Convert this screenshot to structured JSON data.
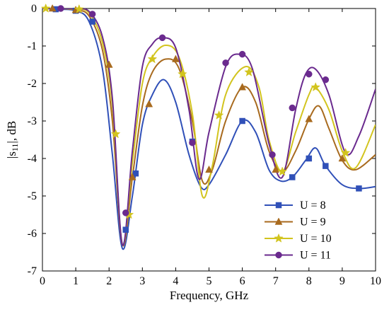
{
  "chart_data": {
    "type": "line",
    "title": "",
    "xlabel": "Frequency, GHz",
    "ylabel_main": "|s",
    "ylabel_sub": "11",
    "ylabel_tail": "|, dB",
    "xlim": [
      0,
      10
    ],
    "ylim": [
      -7,
      0
    ],
    "xticks": [
      0,
      1,
      2,
      3,
      4,
      5,
      6,
      7,
      8,
      9,
      10
    ],
    "yticks": [
      0,
      -1,
      -2,
      -3,
      -4,
      -5,
      -6,
      -7
    ],
    "grid": false,
    "legend_position": "bottom-right",
    "series": [
      {
        "name": "U = 8",
        "color": "#3050b8",
        "marker": "square",
        "x": [
          0,
          0.5,
          1.0,
          1.4,
          1.8,
          2.1,
          2.4,
          2.7,
          3.0,
          3.3,
          3.65,
          4.0,
          4.4,
          4.75,
          5.0,
          5.5,
          6.0,
          6.4,
          6.8,
          7.15,
          7.5,
          7.9,
          8.2,
          8.5,
          9.0,
          9.5,
          10.0
        ],
        "y": [
          0,
          -0.02,
          -0.06,
          -0.35,
          -1.6,
          -3.9,
          -6.4,
          -5.0,
          -3.1,
          -2.3,
          -1.9,
          -2.5,
          -3.9,
          -4.75,
          -4.7,
          -3.9,
          -3.0,
          -3.3,
          -4.3,
          -4.6,
          -4.5,
          -4.05,
          -3.72,
          -4.2,
          -4.7,
          -4.8,
          -4.75
        ],
        "marker_x": [
          0.4,
          1.0,
          1.5,
          2.5,
          2.8,
          4.5,
          6.0,
          7.5,
          8.0,
          8.5,
          9.5
        ],
        "marker_y": [
          -0.02,
          -0.06,
          -0.35,
          -5.9,
          -4.4,
          -3.55,
          -3.0,
          -4.5,
          -4.0,
          -4.2,
          -4.8
        ]
      },
      {
        "name": "U = 9",
        "color": "#a86a1e",
        "marker": "triangle",
        "x": [
          0,
          0.5,
          1.0,
          1.4,
          1.8,
          2.1,
          2.4,
          2.7,
          3.0,
          3.3,
          3.7,
          4.1,
          4.5,
          4.8,
          5.1,
          5.5,
          6.0,
          6.4,
          6.8,
          7.2,
          7.6,
          8.0,
          8.3,
          8.6,
          9.0,
          9.4,
          10.0
        ],
        "y": [
          0,
          0,
          -0.04,
          -0.2,
          -1.1,
          -3.0,
          -6.3,
          -4.5,
          -2.6,
          -1.7,
          -1.35,
          -1.6,
          -3.0,
          -4.6,
          -4.3,
          -3.0,
          -2.1,
          -2.5,
          -3.8,
          -4.35,
          -3.8,
          -2.95,
          -2.6,
          -3.2,
          -4.05,
          -4.3,
          -3.9
        ],
        "marker_x": [
          0.3,
          1.0,
          2.0,
          2.7,
          3.2,
          4.0,
          5.0,
          6.0,
          7.0,
          8.0,
          9.0
        ],
        "marker_y": [
          0,
          -0.04,
          -1.5,
          -4.5,
          -2.55,
          -1.35,
          -4.3,
          -2.1,
          -4.3,
          -2.95,
          -4.0
        ]
      },
      {
        "name": "U = 10",
        "color": "#d2c41e",
        "marker": "star",
        "x": [
          0,
          0.5,
          1.0,
          1.4,
          1.8,
          2.1,
          2.4,
          2.7,
          3.0,
          3.3,
          3.7,
          4.1,
          4.5,
          4.8,
          5.1,
          5.5,
          6.1,
          6.5,
          6.8,
          7.2,
          7.6,
          8.0,
          8.2,
          8.6,
          9.0,
          9.4,
          10.0
        ],
        "y": [
          0,
          0,
          -0.02,
          -0.12,
          -0.9,
          -2.6,
          -6.3,
          -4.1,
          -2.0,
          -1.3,
          -0.98,
          -1.3,
          -2.8,
          -5.0,
          -4.2,
          -2.3,
          -1.55,
          -2.1,
          -3.5,
          -4.35,
          -3.3,
          -2.3,
          -2.1,
          -2.7,
          -3.8,
          -4.25,
          -3.1
        ],
        "marker_x": [
          0.1,
          1.1,
          2.2,
          2.6,
          3.3,
          4.2,
          5.3,
          6.2,
          7.2,
          8.2,
          9.1
        ],
        "marker_y": [
          0,
          -0.02,
          -3.35,
          -5.5,
          -1.35,
          -1.75,
          -2.85,
          -1.7,
          -4.35,
          -2.1,
          -3.85
        ]
      },
      {
        "name": "U = 11",
        "color": "#6a2a8e",
        "marker": "circle",
        "x": [
          0,
          0.5,
          1.0,
          1.4,
          1.8,
          2.1,
          2.4,
          2.7,
          3.0,
          3.3,
          3.6,
          4.0,
          4.4,
          4.7,
          5.0,
          5.5,
          5.9,
          6.3,
          6.8,
          7.2,
          7.6,
          7.9,
          8.2,
          8.6,
          9.1,
          9.5,
          10.0
        ],
        "y": [
          0,
          0,
          -0.01,
          -0.08,
          -0.75,
          -2.4,
          -6.3,
          -3.8,
          -1.55,
          -0.95,
          -0.78,
          -1.05,
          -2.7,
          -4.55,
          -3.3,
          -1.55,
          -1.22,
          -1.6,
          -3.6,
          -4.5,
          -2.7,
          -1.75,
          -1.62,
          -2.3,
          -3.85,
          -3.4,
          -2.15
        ],
        "marker_x": [
          0.55,
          1.5,
          2.5,
          3.6,
          4.5,
          5.5,
          6.0,
          6.9,
          7.5,
          8.0,
          8.5
        ],
        "marker_y": [
          0,
          -0.15,
          -5.45,
          -0.78,
          -3.58,
          -1.45,
          -1.22,
          -3.9,
          -2.65,
          -1.75,
          -1.9
        ]
      }
    ]
  }
}
